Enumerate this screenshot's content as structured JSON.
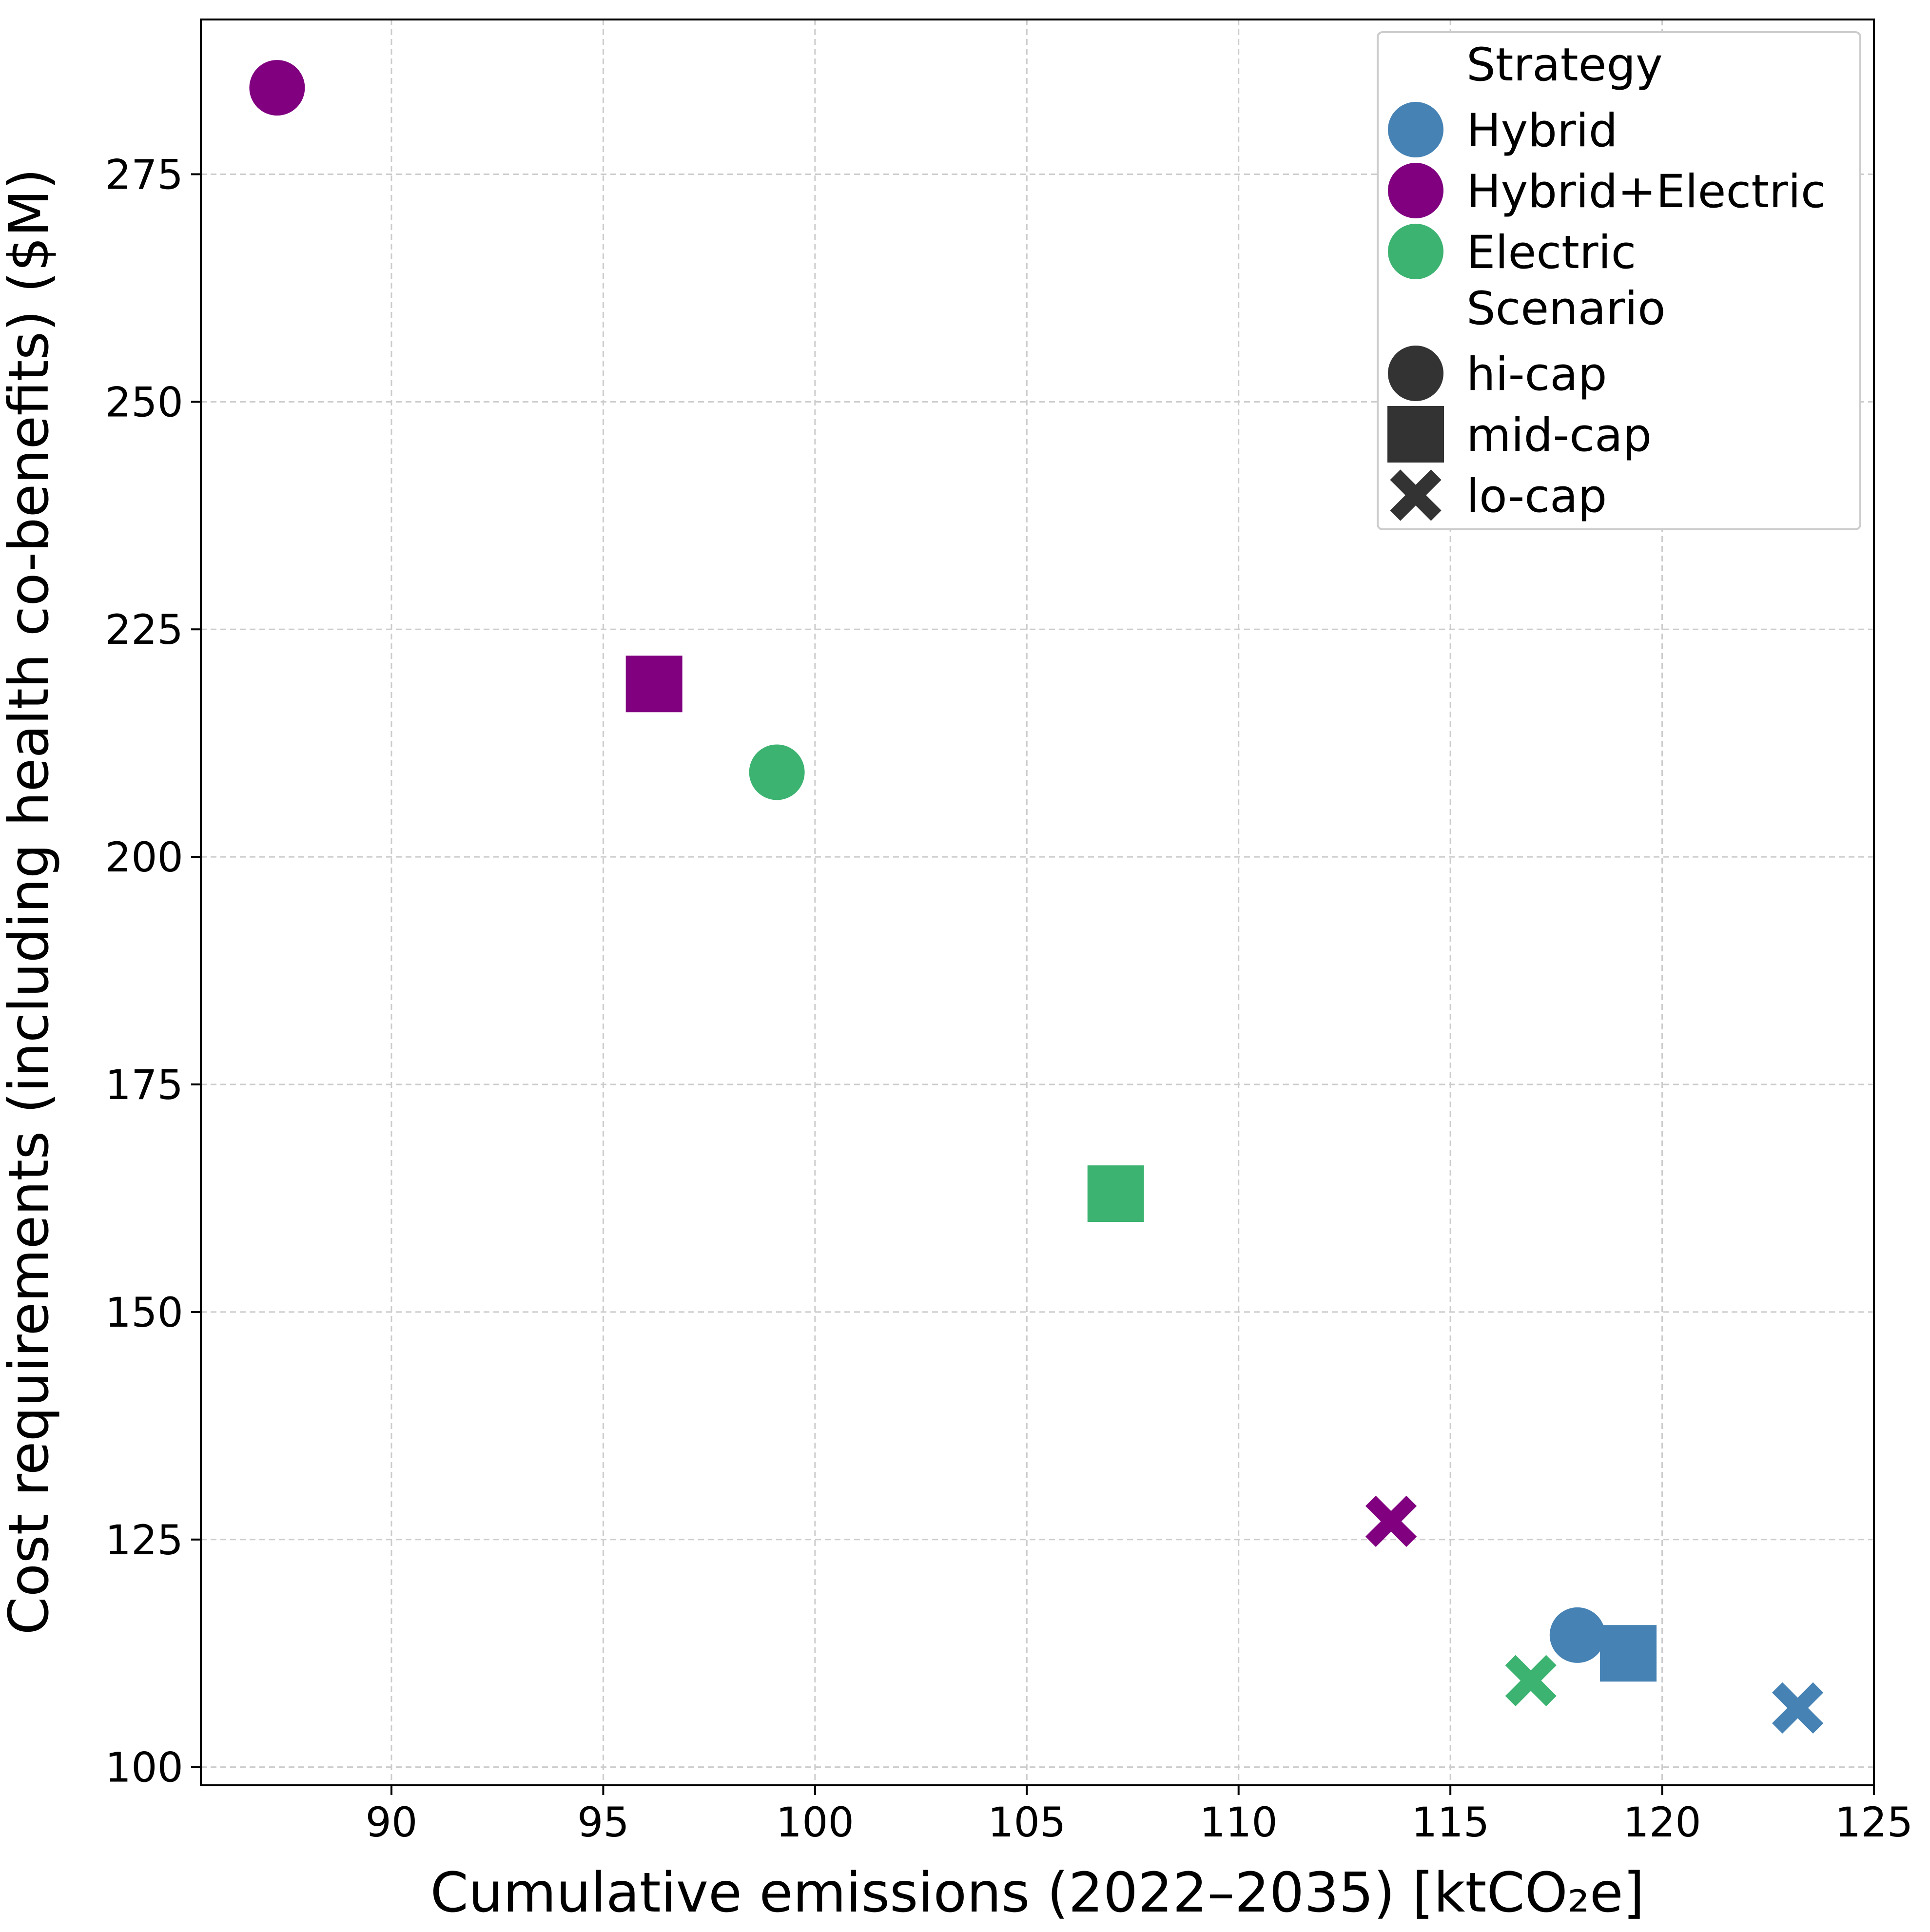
{
  "chart_data": {
    "type": "scatter",
    "title": "",
    "xlabel": "Cumulative emissions (2022–2035) [ktCO₂e]",
    "ylabel": "Cost requirements (including health co-benefits) ($M)",
    "xlim": [
      85.5,
      125
    ],
    "ylim": [
      98,
      292
    ],
    "x_ticks": [
      90,
      95,
      100,
      105,
      110,
      115,
      120,
      125
    ],
    "y_ticks": [
      100,
      125,
      150,
      175,
      200,
      225,
      250,
      275
    ],
    "grid": true,
    "legend_position": "top-right",
    "strategy_title": "Strategy",
    "scenario_title": "Scenario",
    "strategies": [
      {
        "name": "Hybrid",
        "color": "#4682b4"
      },
      {
        "name": "Hybrid+Electric",
        "color": "#800080"
      },
      {
        "name": "Electric",
        "color": "#3cb371"
      }
    ],
    "scenarios": [
      {
        "name": "hi-cap",
        "marker": "circle"
      },
      {
        "name": "mid-cap",
        "marker": "square"
      },
      {
        "name": "lo-cap",
        "marker": "x"
      }
    ],
    "legend_marker_color": "#333333",
    "points": [
      {
        "strategy": "Hybrid+Electric",
        "scenario": "hi-cap",
        "x": 87.3,
        "y": 284.5
      },
      {
        "strategy": "Hybrid+Electric",
        "scenario": "mid-cap",
        "x": 96.2,
        "y": 219
      },
      {
        "strategy": "Hybrid+Electric",
        "scenario": "lo-cap",
        "x": 113.6,
        "y": 127
      },
      {
        "strategy": "Electric",
        "scenario": "hi-cap",
        "x": 99.1,
        "y": 209.3
      },
      {
        "strategy": "Electric",
        "scenario": "mid-cap",
        "x": 107.1,
        "y": 163
      },
      {
        "strategy": "Electric",
        "scenario": "lo-cap",
        "x": 116.9,
        "y": 109.5
      },
      {
        "strategy": "Hybrid",
        "scenario": "hi-cap",
        "x": 118,
        "y": 114.5
      },
      {
        "strategy": "Hybrid",
        "scenario": "mid-cap",
        "x": 119.2,
        "y": 112.5
      },
      {
        "strategy": "Hybrid",
        "scenario": "lo-cap",
        "x": 123.2,
        "y": 106.5
      }
    ]
  }
}
